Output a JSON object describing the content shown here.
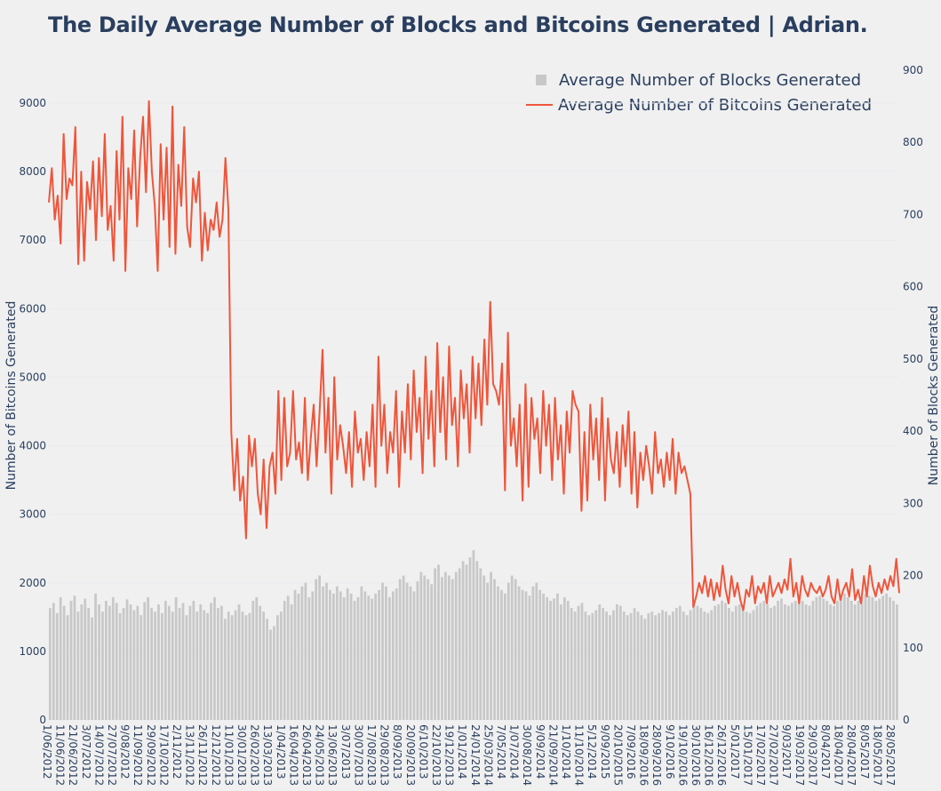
{
  "chart_data": {
    "type": "bar+line",
    "title": "The Daily Average Number of Blocks and Bitcoins Generated | Adrian.",
    "xlabel": "",
    "ylabel_left": "Number of Bitcoins Generated",
    "ylabel_right": "Number of Blocks Generated",
    "ylim_left": [
      0,
      9000
    ],
    "ylim_right": [
      0,
      900
    ],
    "yticks_left": [
      "0",
      "1000",
      "2000",
      "3000",
      "4000",
      "5000",
      "6000",
      "7000",
      "8000",
      "9000"
    ],
    "yticks_right": [
      "0",
      "100",
      "200",
      "300",
      "400",
      "500",
      "600",
      "700",
      "800",
      "900"
    ],
    "legend_position": "top-right",
    "x_tick_labels": [
      "1/06/2012",
      "11/06/2012",
      "21/06/2012",
      "3/07/2012",
      "14/07/2012",
      "27/07/2012",
      "9/08/2012",
      "11/09/2012",
      "29/09/2012",
      "17/10/2012",
      "2/11/2012",
      "13/11/2012",
      "26/11/2012",
      "12/12/2012",
      "11/01/2013",
      "30/01/2013",
      "26/02/2013",
      "13/03/2013",
      "1/04/2013",
      "16/04/2013",
      "26/04/2013",
      "24/05/2013",
      "13/06/2013",
      "3/07/2013",
      "30/07/2013",
      "17/08/2013",
      "29/08/2013",
      "8/09/2013",
      "20/09/2013",
      "6/10/2013",
      "22/10/2013",
      "19/12/2013",
      "1/01/2014",
      "24/01/2014",
      "25/03/2014",
      "7/05/2014",
      "1/07/2014",
      "30/08/2014",
      "9/09/2014",
      "21/09/2014",
      "1/10/2014",
      "11/10/2014",
      "5/12/2014",
      "9/09/2015",
      "20/10/2015",
      "7/09/2016",
      "18/09/2016",
      "28/09/2016",
      "9/10/2016",
      "19/10/2016",
      "30/10/2016",
      "16/12/2016",
      "26/12/2016",
      "5/01/2017",
      "15/01/2017",
      "17/02/2017",
      "27/02/2017",
      "9/03/2017",
      "19/03/2017",
      "29/03/2017",
      "8/04/2017",
      "18/04/2017",
      "28/04/2017",
      "8/05/2017",
      "18/05/2017",
      "28/05/2017"
    ],
    "series": [
      {
        "name": "Average Number of Blocks Generated",
        "type": "bar",
        "axis": "right",
        "color": "#c8c8c8",
        "values": [
          155,
          162,
          148,
          170,
          158,
          145,
          165,
          172,
          150,
          160,
          168,
          155,
          142,
          175,
          160,
          150,
          165,
          158,
          170,
          162,
          148,
          155,
          167,
          160,
          152,
          158,
          145,
          163,
          170,
          155,
          150,
          160,
          148,
          165,
          158,
          150,
          170,
          155,
          162,
          145,
          158,
          165,
          150,
          160,
          152,
          148,
          162,
          170,
          155,
          158,
          140,
          150,
          145,
          152,
          160,
          150,
          145,
          148,
          165,
          170,
          158,
          150,
          140,
          125,
          130,
          145,
          150,
          165,
          172,
          160,
          180,
          175,
          185,
          190,
          170,
          178,
          195,
          200,
          185,
          190,
          180,
          175,
          185,
          178,
          170,
          182,
          175,
          165,
          170,
          185,
          178,
          172,
          168,
          175,
          180,
          190,
          185,
          170,
          178,
          182,
          195,
          200,
          190,
          185,
          178,
          192,
          205,
          200,
          195,
          188,
          210,
          215,
          198,
          205,
          200,
          195,
          205,
          210,
          220,
          215,
          225,
          235,
          220,
          210,
          200,
          190,
          205,
          195,
          185,
          180,
          175,
          190,
          200,
          195,
          185,
          180,
          178,
          172,
          185,
          190,
          180,
          175,
          170,
          165,
          168,
          175,
          160,
          170,
          165,
          155,
          150,
          158,
          162,
          150,
          145,
          148,
          152,
          160,
          155,
          150,
          145,
          152,
          160,
          158,
          150,
          145,
          148,
          155,
          150,
          145,
          140,
          148,
          150,
          145,
          148,
          152,
          150,
          145,
          150,
          155,
          158,
          150,
          145,
          152,
          160,
          158,
          155,
          150,
          148,
          152,
          158,
          160,
          165,
          162,
          155,
          150,
          158,
          160,
          155,
          150,
          148,
          152,
          158,
          162,
          165,
          160,
          155,
          158,
          165,
          168,
          160,
          158,
          162,
          165,
          170,
          165,
          160,
          158,
          165,
          170,
          172,
          168,
          165,
          160,
          158,
          165,
          170,
          175,
          170,
          165,
          160,
          165,
          170,
          175,
          172,
          170,
          165,
          168,
          172,
          175,
          170,
          165,
          160
        ]
      },
      {
        "name": "Average Number of Bitcoins Generated",
        "type": "line",
        "axis": "left",
        "color": "#ef553b",
        "values": [
          7550,
          8050,
          7300,
          7650,
          6950,
          8550,
          7600,
          7900,
          7800,
          8650,
          6650,
          8000,
          6700,
          7850,
          7450,
          8150,
          7000,
          8200,
          7350,
          8550,
          7150,
          7500,
          6700,
          8300,
          7300,
          8800,
          6550,
          8050,
          7600,
          8600,
          7200,
          8200,
          8800,
          7700,
          9030,
          8000,
          7500,
          6550,
          8400,
          7300,
          8350,
          6900,
          8950,
          6800,
          8100,
          7500,
          8650,
          7200,
          6900,
          7900,
          7550,
          8000,
          6700,
          7400,
          6850,
          7300,
          7150,
          7550,
          7050,
          7300,
          8200,
          7450,
          4200,
          3350,
          4100,
          3200,
          3550,
          2650,
          4150,
          3700,
          4100,
          3300,
          3000,
          3800,
          2800,
          3700,
          3900,
          3300,
          4800,
          3500,
          4700,
          3700,
          3900,
          4800,
          3800,
          4050,
          3600,
          4700,
          3500,
          4100,
          4600,
          3700,
          4500,
          5400,
          3900,
          4700,
          3300,
          5000,
          3800,
          4300,
          4000,
          3600,
          4200,
          3400,
          4500,
          3900,
          4100,
          3500,
          4200,
          3700,
          4600,
          3400,
          5300,
          4000,
          4600,
          3600,
          4200,
          3900,
          4800,
          3400,
          4500,
          3900,
          4900,
          3800,
          5100,
          4200,
          4700,
          3600,
          5300,
          4100,
          4800,
          3700,
          5500,
          4200,
          5000,
          3800,
          5450,
          4300,
          4700,
          3700,
          5100,
          4400,
          4900,
          3900,
          5300,
          4400,
          5200,
          4300,
          5550,
          4600,
          6100,
          4900,
          4800,
          4600,
          5200,
          3350,
          5650,
          4000,
          4400,
          3700,
          4600,
          3200,
          4900,
          3400,
          4700,
          4100,
          4400,
          3600,
          4800,
          4000,
          4600,
          3500,
          4700,
          3800,
          4300,
          3300,
          4500,
          3900,
          4800,
          4600,
          4500,
          3050,
          4200,
          3200,
          4600,
          3800,
          4400,
          3500,
          4700,
          3200,
          4400,
          3800,
          3600,
          4200,
          3400,
          4300,
          3700,
          4500,
          3300,
          4200,
          3100,
          3900,
          3500,
          4000,
          3700,
          3300,
          4200,
          3600,
          3800,
          3400,
          3900,
          3500,
          4100,
          3300,
          3900,
          3600,
          3700,
          3500,
          3300,
          1650,
          1800,
          2000,
          1850,
          2100,
          1800,
          2050,
          1750,
          2000,
          1800,
          2250,
          1900,
          1700,
          2100,
          1800,
          2000,
          1750,
          1600,
          1900,
          1800,
          2100,
          1700,
          1950,
          1850,
          2000,
          1700,
          2100,
          1800,
          1900,
          2000,
          1850,
          2050,
          1900,
          2350,
          1800,
          2000,
          1700,
          2100,
          1900,
          1800,
          2000,
          1900,
          1850,
          1950,
          1800,
          1900,
          2100,
          1800,
          1700,
          2050,
          1750,
          1900,
          2000,
          1800,
          2200,
          1750,
          1900,
          1700,
          2100,
          1800,
          2250,
          1950,
          1800,
          2000,
          1850,
          2050,
          1900,
          2100,
          1950,
          2350,
          1850
        ]
      }
    ]
  }
}
